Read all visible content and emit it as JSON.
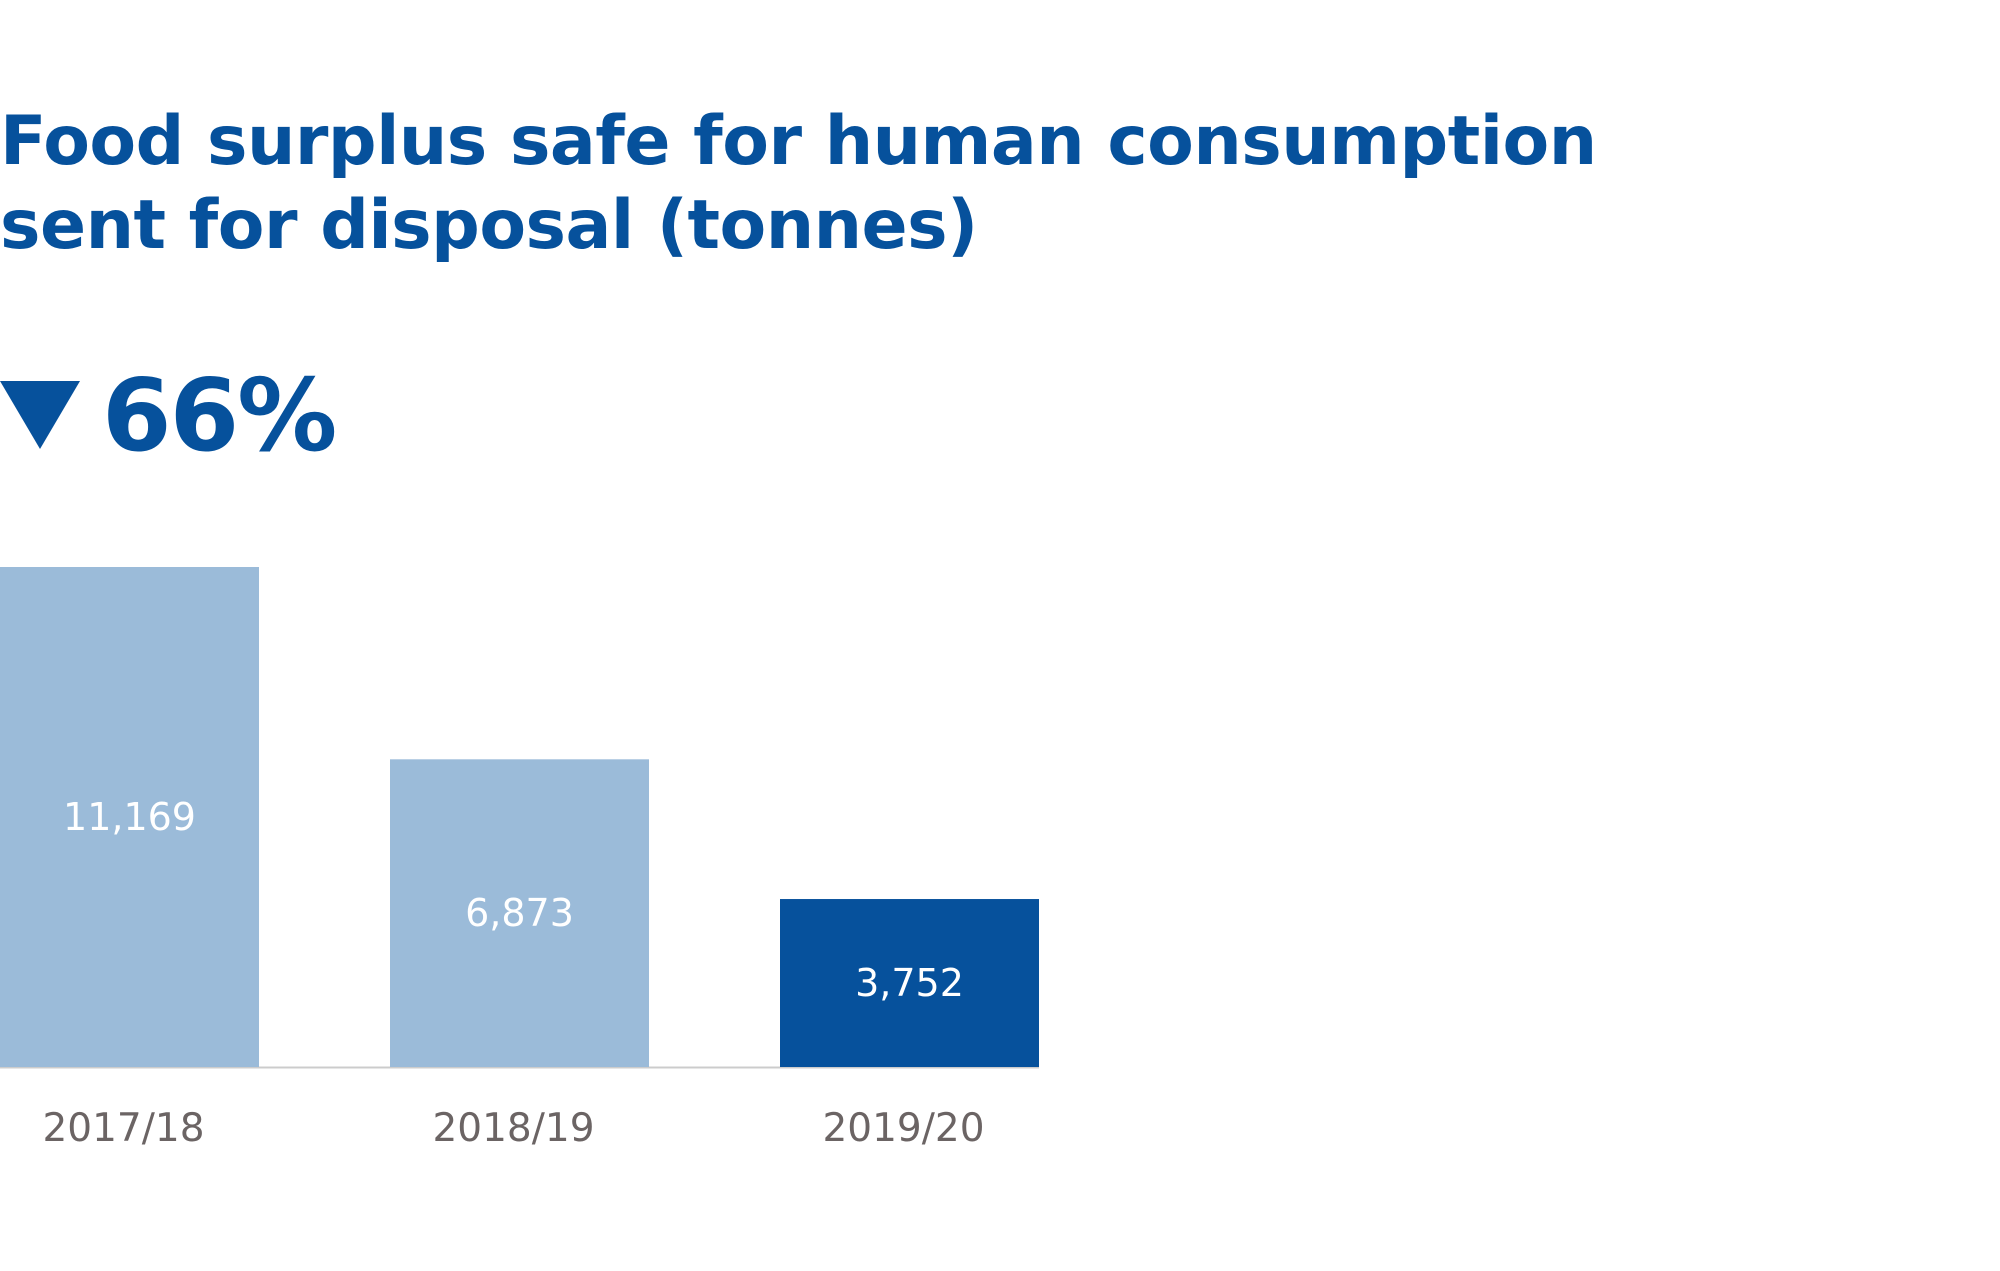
{
  "chart_data": {
    "type": "bar",
    "title_lines": [
      "Food surplus safe for human consumption",
      "sent for disposal (tonnes)"
    ],
    "change": {
      "direction": "down",
      "label": "66%"
    },
    "categories": [
      "2017/18",
      "2018/19",
      "2019/20"
    ],
    "values": [
      11169,
      6873,
      3752
    ],
    "value_labels": [
      "11,169",
      "6,873",
      "3,752"
    ],
    "colors": [
      "#9bbbd9",
      "#9bbbd9",
      "#06519c"
    ],
    "label_color": "#ffffff",
    "tick_color": "#6b6464",
    "axis_color": "#cccccc",
    "ylim": [
      0,
      11169
    ],
    "grid": false,
    "legend": "none"
  }
}
